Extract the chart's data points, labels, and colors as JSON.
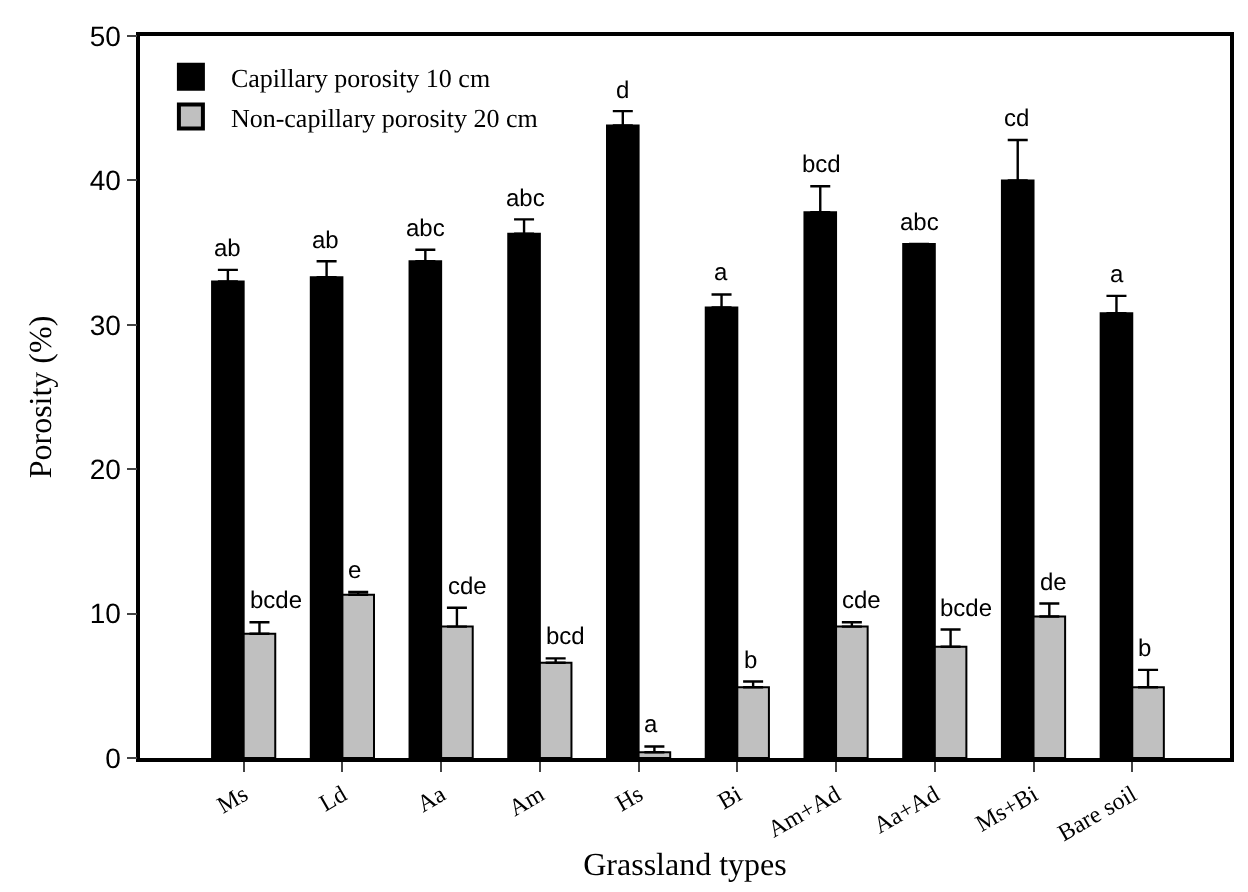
{
  "chart_data": {
    "type": "bar",
    "xlabel": "Grassland types",
    "ylabel": "Porosity (%)",
    "categories": [
      "Ms",
      "Ld",
      "Aa",
      "Am",
      "Hs",
      "Bi",
      "Am+Ad",
      "Aa+Ad",
      "Ms+Bi",
      "Bare soil"
    ],
    "series": [
      {
        "name": "Capillary porosity 10 cm",
        "color": "#000000",
        "values": [
          33.0,
          33.3,
          34.4,
          36.3,
          43.8,
          31.2,
          37.8,
          35.6,
          40.0,
          30.8
        ],
        "errors": [
          [
            33.0,
            33.8
          ],
          [
            33.3,
            34.4
          ],
          [
            34.4,
            35.2
          ],
          [
            36.3,
            37.3
          ],
          [
            43.8,
            44.8
          ],
          [
            31.2,
            32.1
          ],
          [
            37.8,
            39.6
          ],
          [
            35.6,
            35.6
          ],
          [
            40.0,
            42.8
          ],
          [
            30.8,
            32.0
          ]
        ],
        "value_labels": [
          "ab",
          "ab",
          "abc",
          "abc",
          "d",
          "a",
          "bcd",
          "abc",
          "cd",
          "a"
        ]
      },
      {
        "name": "Non-capillary porosity 20 cm",
        "color": "#c0c0c0",
        "values": [
          8.6,
          11.3,
          9.1,
          6.6,
          0.4,
          4.9,
          9.1,
          7.7,
          9.8,
          4.9
        ],
        "errors": [
          [
            8.6,
            9.4
          ],
          [
            11.3,
            11.5
          ],
          [
            9.1,
            10.4
          ],
          [
            6.6,
            6.9
          ],
          [
            0.4,
            0.8
          ],
          [
            4.9,
            5.3
          ],
          [
            9.1,
            9.4
          ],
          [
            7.7,
            8.9
          ],
          [
            9.8,
            10.7
          ],
          [
            4.9,
            6.1
          ]
        ],
        "value_labels": [
          "bcde",
          "e",
          "cde",
          "bcd",
          "a",
          "b",
          "cde",
          "bcde",
          "de",
          "b"
        ]
      }
    ],
    "ylim": [
      0,
      50
    ],
    "yticks": [
      0,
      10,
      20,
      30,
      40,
      50
    ],
    "legend": "top left"
  }
}
